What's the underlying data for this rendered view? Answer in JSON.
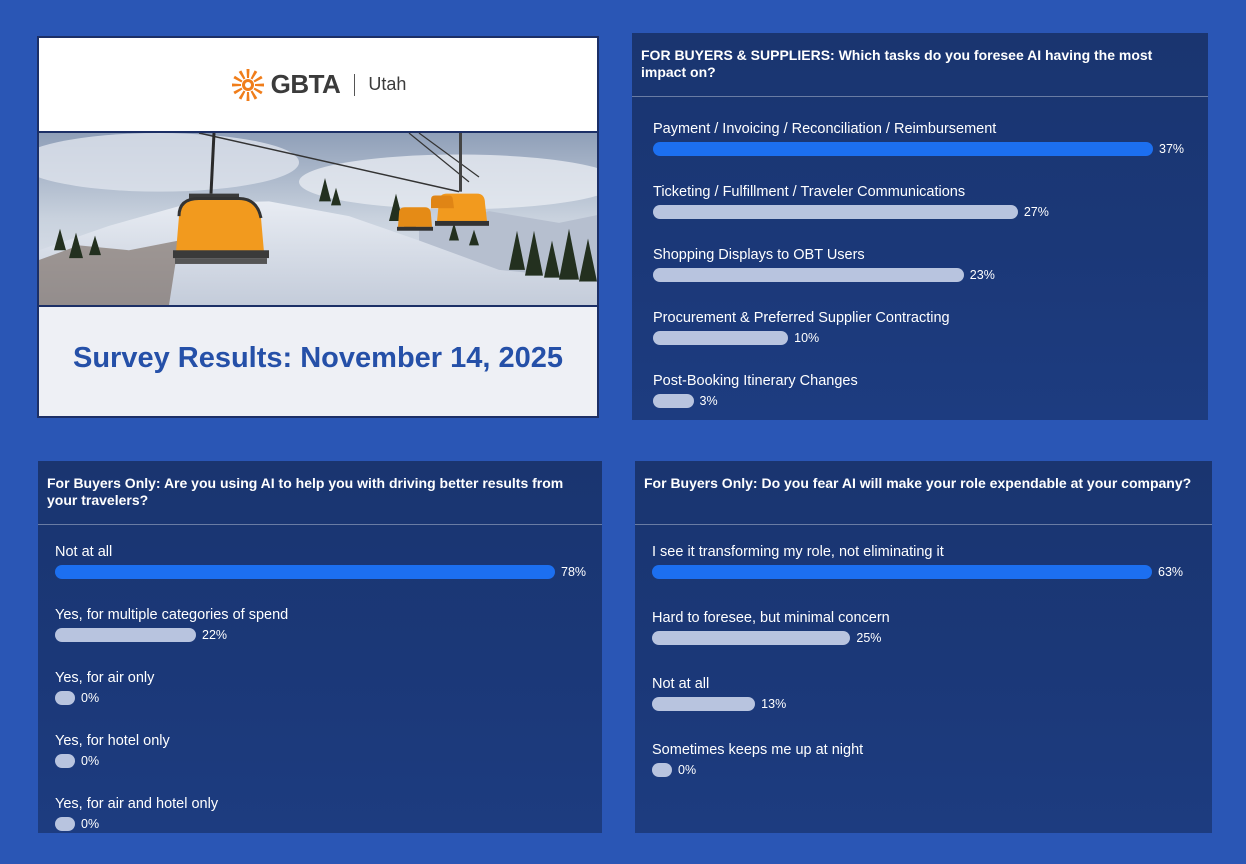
{
  "hero": {
    "logo_text": "GBTA",
    "logo_subtitle": "Utah",
    "title": "Survey Results: November 14, 2025"
  },
  "colors": {
    "background": "#2a56b5",
    "panel": "#1b3878",
    "lead_bar": "#1c6ff0",
    "other_bar": "#b8c4df",
    "title": "#2550a8"
  },
  "chart_data": [
    {
      "type": "bar",
      "title": "FOR BUYERS & SUPPLIERS: Which tasks do you foresee AI having the most impact on?",
      "categories": [
        "Payment / Invoicing / Reconciliation / Reimbursement",
        "Ticketing / Fulfillment / Traveler Communications",
        "Shopping Displays to OBT Users",
        "Procurement & Preferred Supplier Contracting",
        "Post-Booking Itinerary Changes"
      ],
      "values": [
        37,
        27,
        23,
        10,
        3
      ],
      "labels": [
        "37%",
        "27%",
        "23%",
        "10%",
        "3%"
      ]
    },
    {
      "type": "bar",
      "title": "For Buyers Only: Are you using AI to help you with driving better results from your travelers?",
      "categories": [
        "Not at all",
        "Yes, for multiple categories of spend",
        "Yes, for air only",
        "Yes, for hotel only",
        "Yes, for air and hotel only"
      ],
      "values": [
        78,
        22,
        0,
        0,
        0
      ],
      "labels": [
        "78%",
        "22%",
        "0%",
        "0%",
        "0%"
      ]
    },
    {
      "type": "bar",
      "title": "For Buyers Only: Do you fear AI will make your role expendable at your company?",
      "categories": [
        "I see it transforming my role, not eliminating it",
        "Hard to foresee, but minimal concern",
        "Not at all",
        "Sometimes keeps me up at night"
      ],
      "values": [
        63,
        25,
        13,
        0
      ],
      "labels": [
        "63%",
        "25%",
        "13%",
        "0%"
      ]
    }
  ]
}
